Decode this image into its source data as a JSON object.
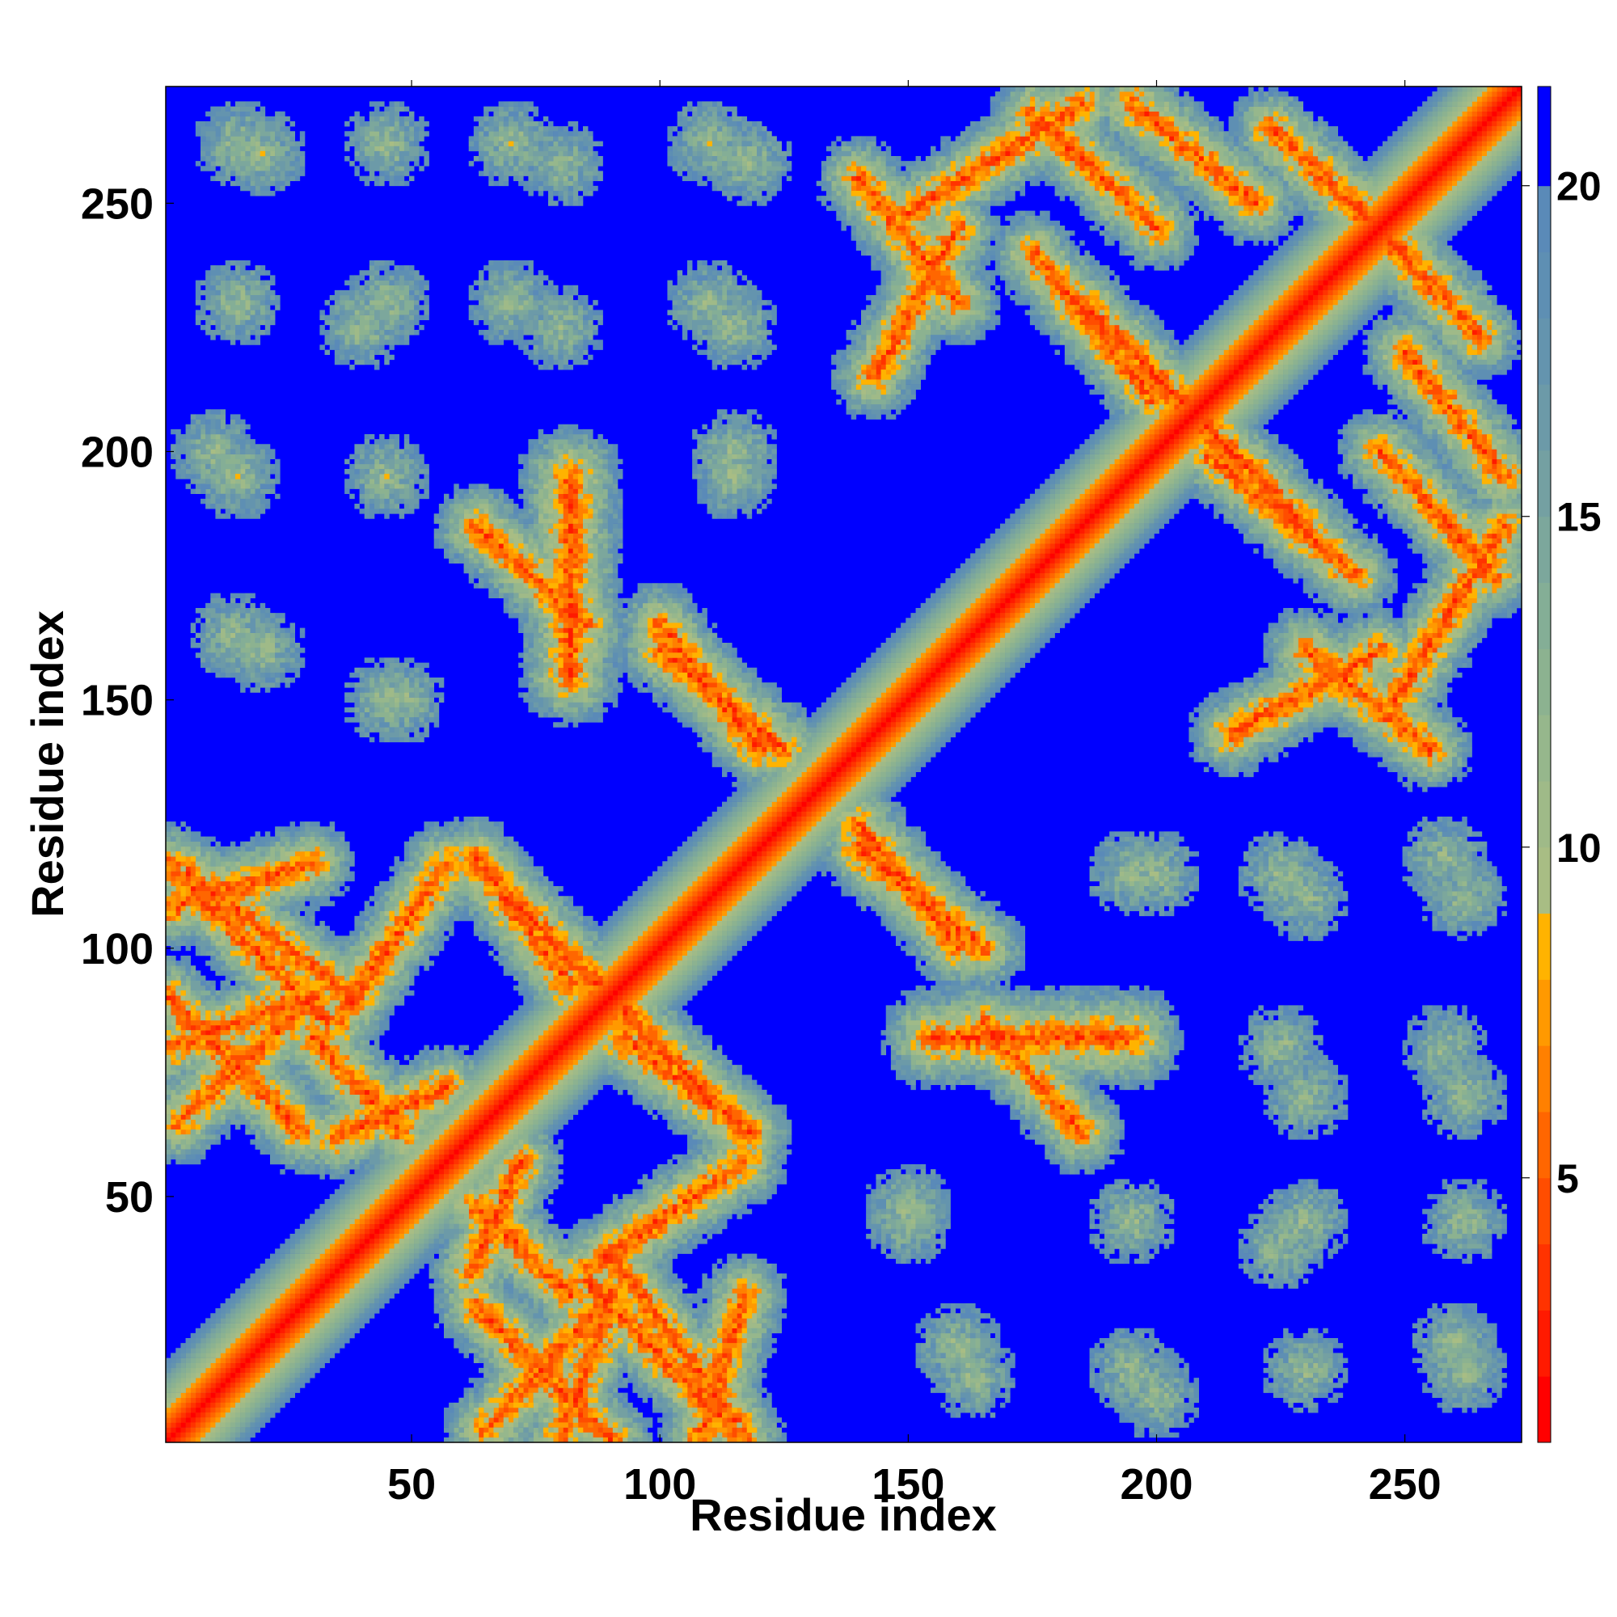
{
  "chart_data": {
    "type": "heatmap",
    "title": "",
    "xlabel": "Residue index",
    "ylabel": "Residue index",
    "xlim": [
      1,
      273
    ],
    "ylim": [
      1,
      273
    ],
    "x_ticks": [
      50,
      100,
      150,
      200,
      250
    ],
    "y_ticks": [
      50,
      100,
      150,
      200,
      250
    ],
    "colorbar": {
      "range": [
        1,
        21.5
      ],
      "ticks": [
        5,
        10,
        15,
        20
      ],
      "levels": [
        {
          "upper": 2,
          "color": "#ff0000"
        },
        {
          "upper": 3,
          "color": "#ff1a00"
        },
        {
          "upper": 4,
          "color": "#ff3300"
        },
        {
          "upper": 5,
          "color": "#ff4d00"
        },
        {
          "upper": 6,
          "color": "#ff6600"
        },
        {
          "upper": 7,
          "color": "#ff8000"
        },
        {
          "upper": 8,
          "color": "#ff9900"
        },
        {
          "upper": 9,
          "color": "#ffb300"
        },
        {
          "upper": 10,
          "color": "#a8bd84"
        },
        {
          "upper": 11,
          "color": "#9fba88"
        },
        {
          "upper": 12,
          "color": "#96b78c"
        },
        {
          "upper": 13,
          "color": "#8cb290"
        },
        {
          "upper": 14,
          "color": "#84ae96"
        },
        {
          "upper": 15,
          "color": "#7ca79c"
        },
        {
          "upper": 16,
          "color": "#74a0a2"
        },
        {
          "upper": 17,
          "color": "#6c9aa8"
        },
        {
          "upper": 18,
          "color": "#6494ae"
        },
        {
          "upper": 19,
          "color": "#5e8fb3"
        },
        {
          "upper": 20,
          "color": "#5a8ab8"
        },
        {
          "upper": 21.5,
          "color": "#0000ff"
        }
      ]
    },
    "colors": {
      "background": "#0000ff",
      "diagonal": "#ff0000",
      "near": "#ff9900",
      "contact": "#8cb290"
    },
    "contact_segments": [
      {
        "x": [
          1,
          33
        ],
        "y": [
          117,
          85
        ],
        "kind": "antidiagonal"
      },
      {
        "x": [
          1,
          28
        ],
        "y": [
          90,
          63
        ],
        "kind": "antidiagonal"
      },
      {
        "x": [
          1,
          30
        ],
        "y": [
          108,
          117
        ],
        "kind": "parallel"
      },
      {
        "x": [
          1,
          28
        ],
        "y": [
          80,
          90
        ],
        "kind": "parallel"
      },
      {
        "x": [
          35,
          57
        ],
        "y": [
          85,
          117
        ],
        "kind": "parallel"
      },
      {
        "x": [
          35,
          57
        ],
        "y": [
          62,
          72
        ],
        "kind": "parallel"
      },
      {
        "x": [
          63,
          82
        ],
        "y": [
          118,
          92
        ],
        "kind": "antidiagonal"
      },
      {
        "x": [
          63,
          82
        ],
        "y": [
          48,
          30
        ],
        "kind": "antidiagonal"
      },
      {
        "x": [
          90,
          117
        ],
        "y": [
          90,
          63
        ],
        "kind": "antidiagonal"
      },
      {
        "x": [
          90,
          115
        ],
        "y": [
          38,
          5
        ],
        "kind": "antidiagonal"
      },
      {
        "x": [
          65,
          90
        ],
        "y": [
          3,
          30
        ],
        "kind": "parallel"
      },
      {
        "x": [
          63,
          85
        ],
        "y": [
          185,
          165
        ],
        "kind": "antidiagonal"
      },
      {
        "x": [
          100,
          125
        ],
        "y": [
          160,
          140
        ],
        "kind": "antidiagonal"
      },
      {
        "x": [
          140,
          165
        ],
        "y": [
          120,
          100
        ],
        "kind": "antidiagonal"
      },
      {
        "x": [
          155,
          195
        ],
        "y": [
          82,
          82
        ],
        "kind": "blob"
      },
      {
        "x": [
          140,
          160
        ],
        "y": [
          255,
          230
        ],
        "kind": "antidiagonal"
      },
      {
        "x": [
          175,
          200
        ],
        "y": [
          268,
          245
        ],
        "kind": "antidiagonal"
      },
      {
        "x": [
          185,
          210
        ],
        "y": [
          230,
          205
        ],
        "kind": "antidiagonal"
      },
      {
        "x": [
          210,
          240
        ],
        "y": [
          200,
          175
        ],
        "kind": "antidiagonal"
      },
      {
        "x": [
          215,
          245
        ],
        "y": [
          143,
          160
        ],
        "kind": "parallel"
      },
      {
        "x": [
          248,
          270
        ],
        "y": [
          150,
          185
        ],
        "kind": "parallel"
      },
      {
        "x": [
          223,
          250
        ],
        "y": [
          265,
          240
        ],
        "kind": "antidiagonal"
      },
      {
        "x": [
          250,
          270
        ],
        "y": [
          220,
          195
        ],
        "kind": "antidiagonal"
      }
    ],
    "contact_blobs": [
      {
        "x": 14,
        "y": 163
      },
      {
        "x": 45,
        "y": 150
      },
      {
        "x": 160,
        "y": 20
      },
      {
        "x": 150,
        "y": 48
      },
      {
        "x": 10,
        "y": 200
      },
      {
        "x": 115,
        "y": 200
      },
      {
        "x": 40,
        "y": 225
      },
      {
        "x": 80,
        "y": 225
      },
      {
        "x": 115,
        "y": 225
      },
      {
        "x": 20,
        "y": 260
      },
      {
        "x": 80,
        "y": 258
      },
      {
        "x": 118,
        "y": 258
      },
      {
        "x": 195,
        "y": 115
      },
      {
        "x": 230,
        "y": 110
      },
      {
        "x": 262,
        "y": 110
      },
      {
        "x": 230,
        "y": 70
      },
      {
        "x": 262,
        "y": 70
      },
      {
        "x": 195,
        "y": 45
      },
      {
        "x": 230,
        "y": 45
      },
      {
        "x": 262,
        "y": 45
      },
      {
        "x": 195,
        "y": 15
      },
      {
        "x": 230,
        "y": 15
      },
      {
        "x": 262,
        "y": 15
      }
    ]
  }
}
